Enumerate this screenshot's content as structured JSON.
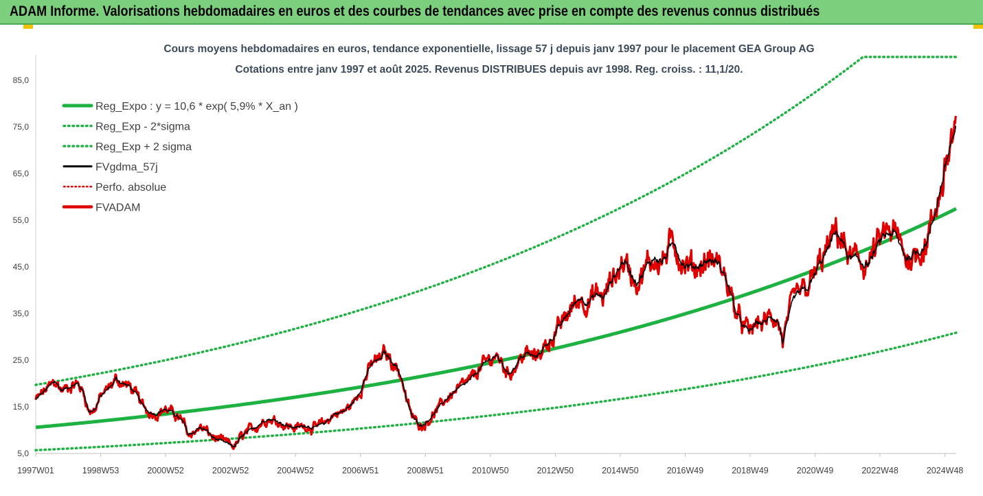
{
  "banner": {
    "title": "ADAM Informe. Valorisations hebdomadaires en euros et des courbes de tendances avec prise en compte des revenus connus distribués"
  },
  "chart_data": {
    "type": "line",
    "title": "Cours moyens hebdomadaires en euros, tendance exponentielle, lissage 57 j depuis janv 1997 pour le placement GEA Group AG",
    "subtitle": "Cotations entre janv 1997 et août 2025. Revenus DISTRIBUES depuis avr 1998. Reg. croiss. : 11,1/20.",
    "x_range": [
      1997.0,
      2025.65
    ],
    "ylim": [
      5,
      90
    ],
    "y_ticks": [
      "5,0",
      "15,0",
      "25,0",
      "35,0",
      "45,0",
      "55,0",
      "65,0",
      "75,0",
      "85,0"
    ],
    "x_tick_labels": [
      "1997W01",
      "1998W53",
      "2000W52",
      "2002W52",
      "2004W52",
      "2006W51",
      "2008W51",
      "2010W50",
      "2012W50",
      "2014W50",
      "2016W49",
      "2018W49",
      "2020W49",
      "2022W48",
      "2024W48"
    ],
    "grid": false,
    "legend_position": "top-left",
    "series": [
      {
        "name": "Reg_Expo : y = 10,6 * exp( 5,9% *  X_an )",
        "color": "#1db141",
        "style": "solid-thick",
        "a": 10.6,
        "b": 0.059
      },
      {
        "name": "Reg_Exp - 2*sigma",
        "color": "#1db141",
        "style": "dotted",
        "a": 5.7,
        "b": 0.059
      },
      {
        "name": "Reg_Exp + 2 sigma",
        "color": "#1db141",
        "style": "dotted",
        "a": 19.7,
        "b": 0.059,
        "cap": 90
      },
      {
        "name": "FVgdma_57j",
        "color": "#000000",
        "style": "solid"
      },
      {
        "name": "Perfo. absolue",
        "color": "#e00000",
        "style": "dotted"
      },
      {
        "name": "FVADAM",
        "color": "#e00000",
        "style": "solid-thick"
      }
    ],
    "price_points": [
      [
        1997.0,
        16.5
      ],
      [
        1997.3,
        18.5
      ],
      [
        1997.6,
        20.5
      ],
      [
        1997.8,
        18.5
      ],
      [
        1998.1,
        19.5
      ],
      [
        1998.3,
        20.0
      ],
      [
        1998.5,
        18.0
      ],
      [
        1998.65,
        14.0
      ],
      [
        1998.85,
        14.5
      ],
      [
        1999.0,
        17.0
      ],
      [
        1999.2,
        18.5
      ],
      [
        1999.35,
        19.5
      ],
      [
        1999.5,
        21.0
      ],
      [
        1999.7,
        20.0
      ],
      [
        1999.9,
        19.5
      ],
      [
        2000.1,
        18.0
      ],
      [
        2000.3,
        15.5
      ],
      [
        2000.5,
        14.0
      ],
      [
        2000.75,
        13.5
      ],
      [
        2001.0,
        14.5
      ],
      [
        2001.2,
        14.0
      ],
      [
        2001.4,
        13.0
      ],
      [
        2001.6,
        11.5
      ],
      [
        2001.75,
        9.0
      ],
      [
        2001.9,
        9.5
      ],
      [
        2002.1,
        10.5
      ],
      [
        2002.3,
        10.0
      ],
      [
        2002.5,
        8.5
      ],
      [
        2002.8,
        7.5
      ],
      [
        2003.0,
        7.0
      ],
      [
        2003.2,
        6.5
      ],
      [
        2003.4,
        8.5
      ],
      [
        2003.6,
        9.5
      ],
      [
        2003.9,
        11.0
      ],
      [
        2004.2,
        12.5
      ],
      [
        2004.5,
        12.0
      ],
      [
        2004.8,
        11.0
      ],
      [
        2005.1,
        10.5
      ],
      [
        2005.4,
        11.0
      ],
      [
        2005.7,
        10.5
      ],
      [
        2006.0,
        11.5
      ],
      [
        2006.3,
        13.5
      ],
      [
        2006.6,
        14.0
      ],
      [
        2006.9,
        16.0
      ],
      [
        2007.1,
        18.5
      ],
      [
        2007.3,
        22.0
      ],
      [
        2007.5,
        24.5
      ],
      [
        2007.7,
        25.0
      ],
      [
        2007.85,
        26.5
      ],
      [
        2008.0,
        25.5
      ],
      [
        2008.2,
        24.0
      ],
      [
        2008.4,
        21.0
      ],
      [
        2008.55,
        16.0
      ],
      [
        2008.75,
        12.5
      ],
      [
        2009.0,
        11.0
      ],
      [
        2009.2,
        12.0
      ],
      [
        2009.45,
        14.0
      ],
      [
        2009.7,
        16.0
      ],
      [
        2009.9,
        17.5
      ],
      [
        2010.2,
        19.0
      ],
      [
        2010.5,
        20.5
      ],
      [
        2010.8,
        23.0
      ],
      [
        2011.1,
        25.0
      ],
      [
        2011.3,
        26.0
      ],
      [
        2011.5,
        24.5
      ],
      [
        2011.7,
        22.0
      ],
      [
        2011.9,
        23.5
      ],
      [
        2012.1,
        25.5
      ],
      [
        2012.3,
        26.5
      ],
      [
        2012.55,
        25.5
      ],
      [
        2012.8,
        27.5
      ],
      [
        2013.1,
        30.0
      ],
      [
        2013.4,
        33.0
      ],
      [
        2013.7,
        36.5
      ],
      [
        2013.95,
        38.5
      ],
      [
        2014.2,
        37.5
      ],
      [
        2014.45,
        39.0
      ],
      [
        2014.7,
        38.5
      ],
      [
        2014.9,
        42.0
      ],
      [
        2015.1,
        44.0
      ],
      [
        2015.3,
        46.5
      ],
      [
        2015.5,
        44.0
      ],
      [
        2015.7,
        42.0
      ],
      [
        2015.9,
        43.5
      ],
      [
        2016.1,
        46.0
      ],
      [
        2016.3,
        47.0
      ],
      [
        2016.5,
        46.0
      ],
      [
        2016.75,
        49.0
      ],
      [
        2016.9,
        50.5
      ],
      [
        2017.05,
        47.0
      ],
      [
        2017.2,
        45.5
      ],
      [
        2017.45,
        45.0
      ],
      [
        2017.7,
        45.5
      ],
      [
        2017.95,
        46.5
      ],
      [
        2018.2,
        46.0
      ],
      [
        2018.4,
        44.0
      ],
      [
        2018.6,
        40.0
      ],
      [
        2018.8,
        35.0
      ],
      [
        2019.0,
        32.5
      ],
      [
        2019.2,
        31.0
      ],
      [
        2019.45,
        33.0
      ],
      [
        2019.7,
        33.0
      ],
      [
        2019.9,
        34.5
      ],
      [
        2020.1,
        33.5
      ],
      [
        2020.25,
        29.0
      ],
      [
        2020.4,
        33.0
      ],
      [
        2020.6,
        38.0
      ],
      [
        2020.8,
        39.5
      ],
      [
        2021.0,
        40.0
      ],
      [
        2021.2,
        42.5
      ],
      [
        2021.4,
        45.5
      ],
      [
        2021.6,
        48.0
      ],
      [
        2021.8,
        51.0
      ],
      [
        2021.95,
        52.5
      ],
      [
        2022.1,
        50.5
      ],
      [
        2022.3,
        47.0
      ],
      [
        2022.5,
        46.5
      ],
      [
        2022.7,
        46.0
      ],
      [
        2022.9,
        45.5
      ],
      [
        2023.1,
        48.0
      ],
      [
        2023.3,
        50.5
      ],
      [
        2023.5,
        52.0
      ],
      [
        2023.7,
        52.5
      ],
      [
        2023.9,
        49.5
      ],
      [
        2024.1,
        47.0
      ],
      [
        2024.3,
        47.5
      ],
      [
        2024.5,
        48.5
      ],
      [
        2024.7,
        50.0
      ],
      [
        2024.9,
        54.0
      ],
      [
        2025.1,
        60.0
      ],
      [
        2025.3,
        66.0
      ],
      [
        2025.5,
        72.0
      ],
      [
        2025.65,
        74.0
      ]
    ]
  }
}
